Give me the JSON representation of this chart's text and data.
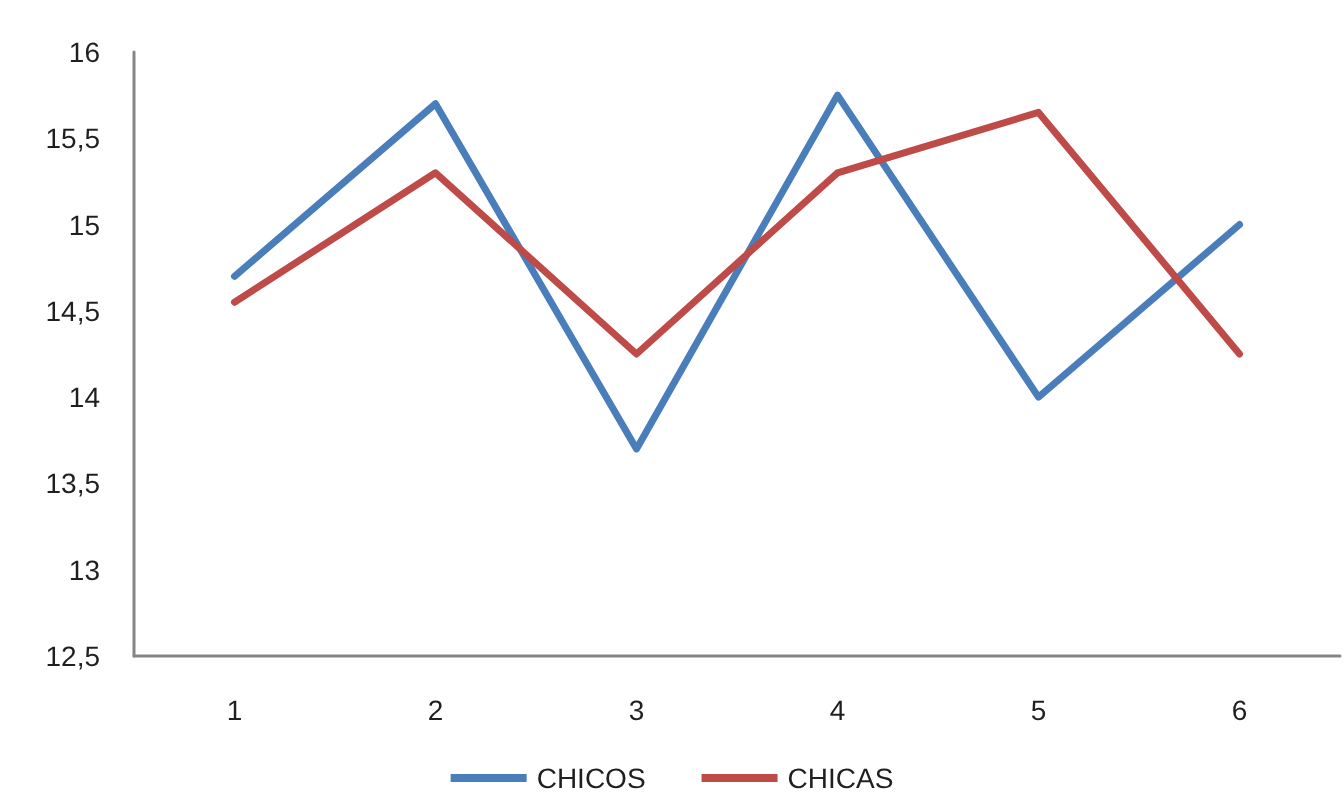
{
  "chart_data": {
    "type": "line",
    "categories": [
      "1",
      "2",
      "3",
      "4",
      "5",
      "6"
    ],
    "series": [
      {
        "name": "CHICOS",
        "color": "#4a7ebb",
        "values": [
          14.7,
          15.7,
          13.7,
          15.75,
          14.0,
          15.0
        ]
      },
      {
        "name": "CHICAS",
        "color": "#be4b48",
        "values": [
          14.55,
          15.3,
          14.25,
          15.3,
          15.65,
          14.25
        ]
      }
    ],
    "ylim": [
      12.5,
      16
    ],
    "yticks": [
      {
        "value": 12.5,
        "label": "12,5"
      },
      13,
      {
        "value": 13.5,
        "label": "13,5"
      },
      14,
      {
        "value": 14.5,
        "label": "14,5"
      },
      15,
      {
        "value": 15.5,
        "label": "15,5"
      },
      16
    ],
    "grid": false,
    "legend": "bottom",
    "marker": "none",
    "line_style": "solid"
  }
}
